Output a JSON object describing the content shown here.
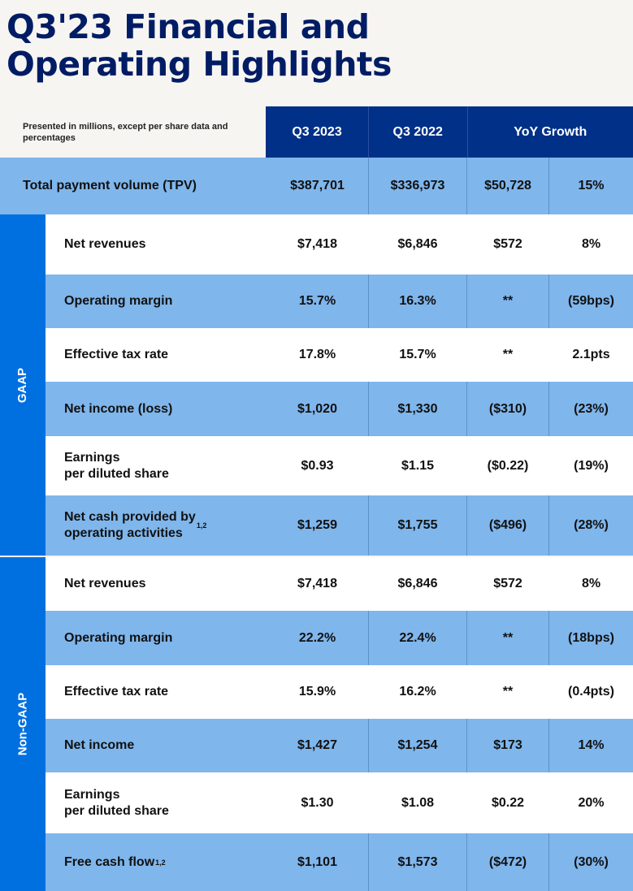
{
  "title_line1": "Q3'23 Financial and",
  "title_line2": "Operating Highlights",
  "header": {
    "note": "Presented in millions, except per share data and percentages",
    "col1": "Q3 2023",
    "col2": "Q3 2022",
    "col3": "YoY Growth"
  },
  "tpv": {
    "label": "Total payment volume (TPV)",
    "q3_2023": "$387,701",
    "q3_2022": "$336,973",
    "change": "$50,728",
    "pct": "15%"
  },
  "gaap": {
    "side_label": "GAAP",
    "rows": [
      {
        "label": "Net revenues",
        "sup": "",
        "q3_2023": "$7,418",
        "q3_2022": "$6,846",
        "change": "$572",
        "pct": "8%"
      },
      {
        "label": "Operating margin",
        "sup": "",
        "q3_2023": "15.7%",
        "q3_2022": "16.3%",
        "change": "**",
        "pct": "(59bps)"
      },
      {
        "label": "Effective tax rate",
        "sup": "",
        "q3_2023": "17.8%",
        "q3_2022": "15.7%",
        "change": "**",
        "pct": "2.1pts"
      },
      {
        "label": "Net income (loss)",
        "sup": "",
        "q3_2023": "$1,020",
        "q3_2022": "$1,330",
        "change": "($310)",
        "pct": "(23%)"
      },
      {
        "label": "Earnings\nper diluted share",
        "sup": "",
        "q3_2023": "$0.93",
        "q3_2022": "$1.15",
        "change": "($0.22)",
        "pct": "(19%)"
      },
      {
        "label": "Net cash provided by\noperating activities",
        "sup": "1,2",
        "q3_2023": "$1,259",
        "q3_2022": "$1,755",
        "change": "($496)",
        "pct": "(28%)"
      }
    ]
  },
  "nongaap": {
    "side_label": "Non-GAAP",
    "rows": [
      {
        "label": "Net revenues",
        "sup": "",
        "q3_2023": "$7,418",
        "q3_2022": "$6,846",
        "change": "$572",
        "pct": "8%"
      },
      {
        "label": "Operating margin",
        "sup": "",
        "q3_2023": "22.2%",
        "q3_2022": "22.4%",
        "change": "**",
        "pct": "(18bps)"
      },
      {
        "label": "Effective tax rate",
        "sup": "",
        "q3_2023": "15.9%",
        "q3_2022": "16.2%",
        "change": "**",
        "pct": "(0.4pts)"
      },
      {
        "label": "Net income",
        "sup": "",
        "q3_2023": "$1,427",
        "q3_2022": "$1,254",
        "change": "$173",
        "pct": "14%"
      },
      {
        "label": "Earnings\nper diluted share",
        "sup": "",
        "q3_2023": "$1.30",
        "q3_2022": "$1.08",
        "change": "$0.22",
        "pct": "20%"
      },
      {
        "label": "Free cash flow",
        "sup": "1,2",
        "q3_2023": "$1,101",
        "q3_2022": "$1,573",
        "change": "($472)",
        "pct": "(30%)"
      }
    ]
  },
  "colors": {
    "navy": "#003087",
    "side_blue": "#0070e0",
    "row_blue": "#7fb6ec",
    "title": "#001c64"
  }
}
